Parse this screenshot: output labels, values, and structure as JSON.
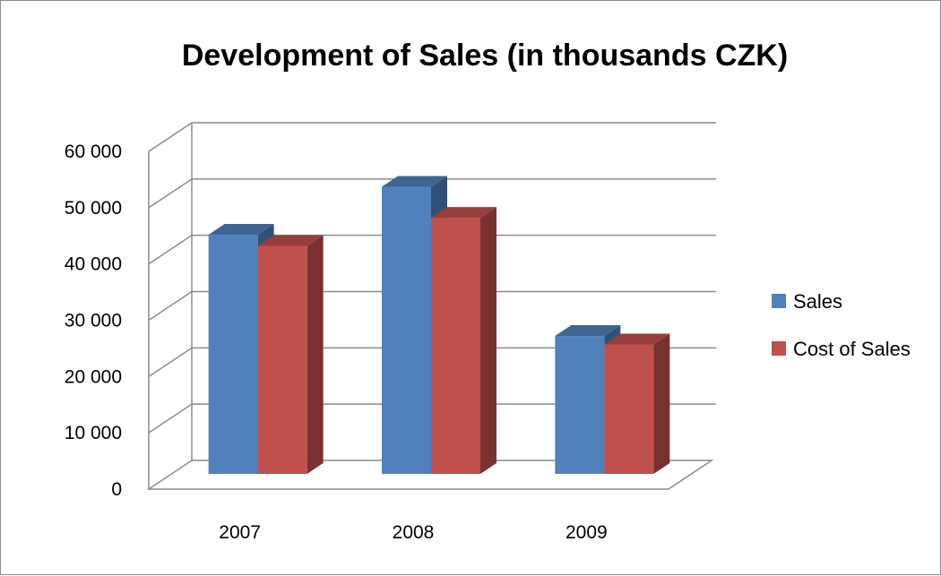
{
  "chart_data": {
    "type": "bar",
    "title": "Development of Sales (in thousands CZK)",
    "xlabel": "",
    "ylabel": "",
    "categories": [
      "2007",
      "2008",
      "2009"
    ],
    "series": [
      {
        "name": "Sales",
        "values": [
          42500,
          51000,
          24500
        ],
        "color": "#4F81BD"
      },
      {
        "name": "Cost of Sales",
        "values": [
          40500,
          45500,
          23000
        ],
        "color": "#C0504D"
      }
    ],
    "ylim": [
      0,
      60000
    ],
    "yticks": [
      0,
      10000,
      20000,
      30000,
      40000,
      50000,
      60000
    ],
    "ytick_labels": [
      "0",
      "10 000",
      "20 000",
      "30 000",
      "40 000",
      "50 000",
      "60 000"
    ],
    "grid": true,
    "legend_position": "right",
    "style": "3d-clustered-column"
  }
}
